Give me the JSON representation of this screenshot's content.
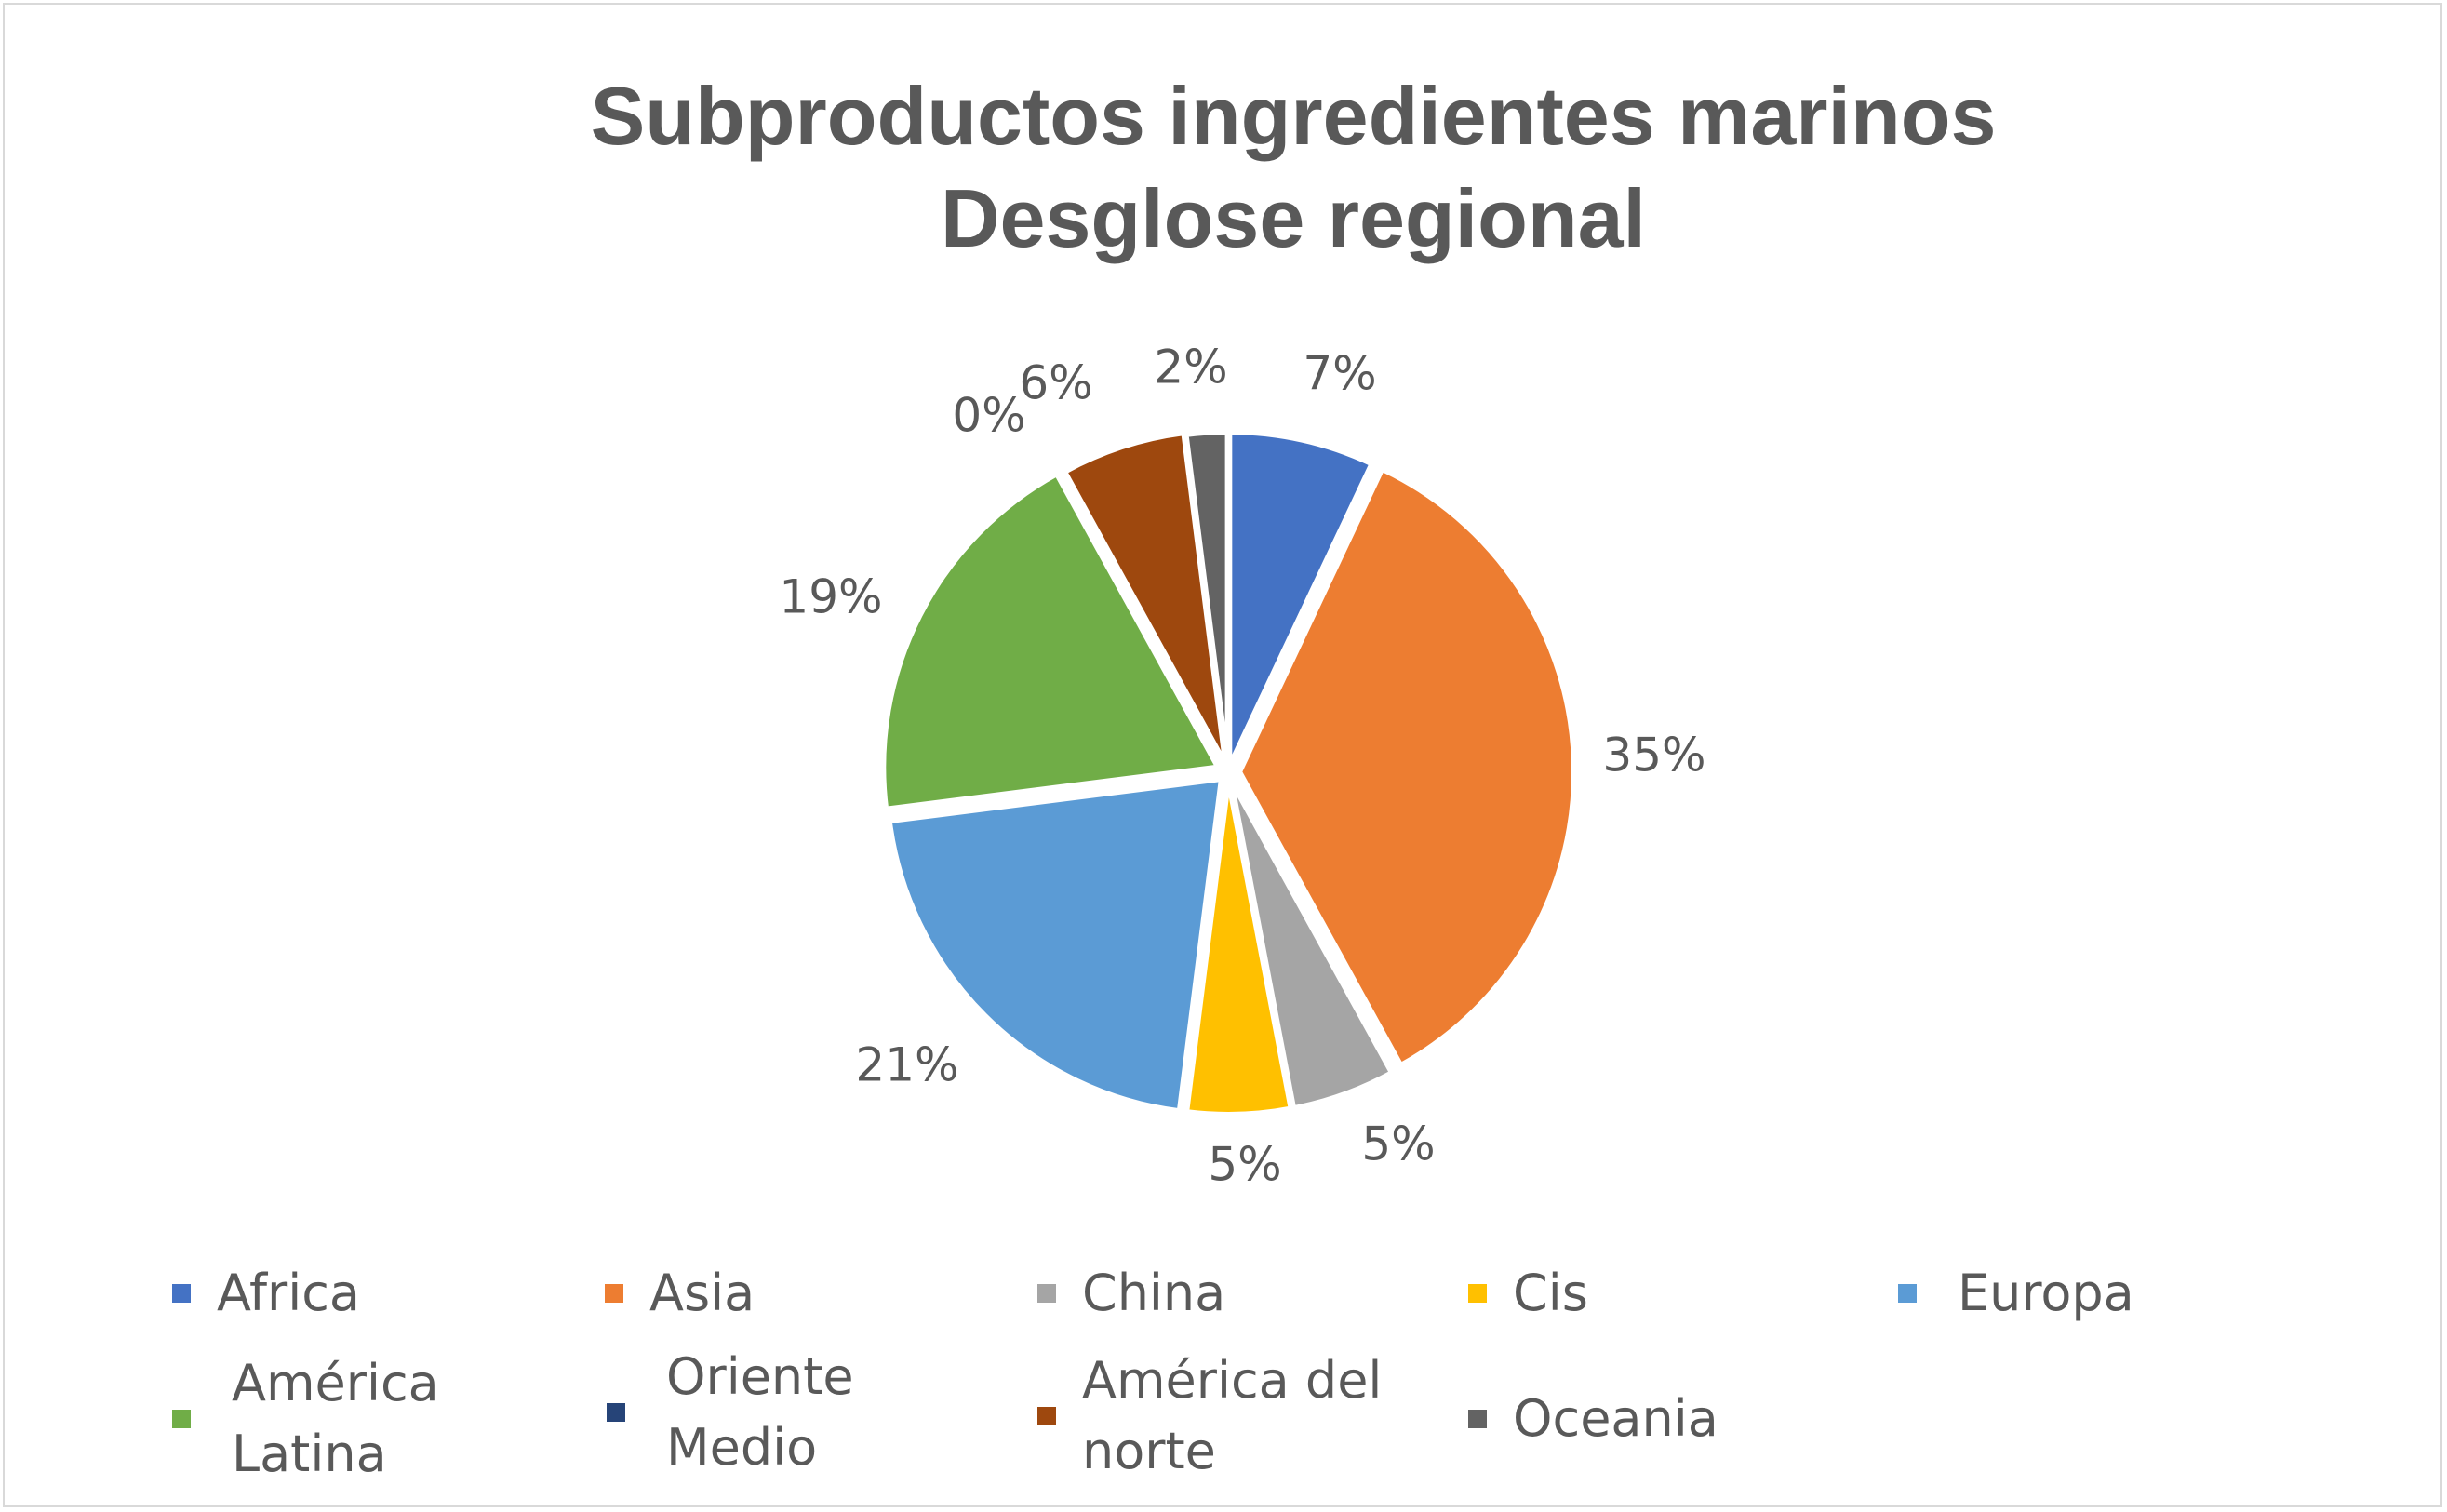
{
  "chart_data": {
    "type": "pie",
    "title": "Subproductos ingredientes marinos",
    "subtitle": "Desglose regional",
    "slices": [
      {
        "name": "Africa",
        "value": 7,
        "label": "7%",
        "color": "#4472C4"
      },
      {
        "name": "Asia",
        "value": 35,
        "label": "35%",
        "color": "#ED7D31"
      },
      {
        "name": "China",
        "value": 5,
        "label": "5%",
        "color": "#A5A5A5"
      },
      {
        "name": "Cis",
        "value": 5,
        "label": "5%",
        "color": "#FFC000"
      },
      {
        "name": "Europa",
        "value": 21,
        "label": "21%",
        "color": "#5B9BD5"
      },
      {
        "name": "América Latina",
        "value": 19,
        "label": "19%",
        "color": "#70AD47"
      },
      {
        "name": "Oriente Medio",
        "value": 0,
        "label": "0%",
        "color": "#264478"
      },
      {
        "name": "América del norte",
        "value": 6,
        "label": "6%",
        "color": "#9E480E"
      },
      {
        "name": "Oceania",
        "value": 2,
        "label": "2%",
        "color": "#636363"
      }
    ],
    "legend_position": "bottom"
  }
}
